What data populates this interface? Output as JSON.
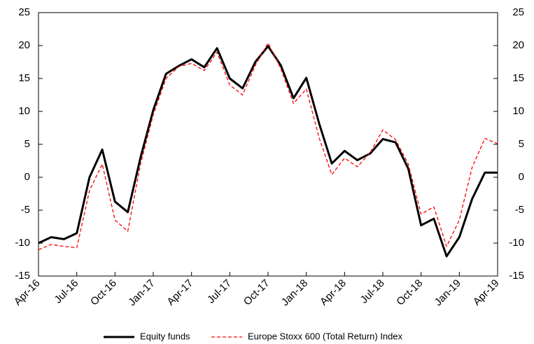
{
  "chart_data": {
    "type": "line",
    "categories": [
      "Apr-16",
      null,
      null,
      "Jul-16",
      null,
      null,
      "Oct-16",
      null,
      null,
      "Jan-17",
      null,
      null,
      "Apr-17",
      null,
      null,
      "Jul-17",
      null,
      null,
      "Oct-17",
      null,
      null,
      "Jan-18",
      null,
      null,
      "Apr-18",
      null,
      null,
      "Jul-18",
      null,
      null,
      "Oct-18",
      null,
      null,
      "Jan-19",
      null,
      null,
      "Apr-19"
    ],
    "series": [
      {
        "name": "Equity funds",
        "color": "#000000",
        "values": [
          -10,
          -9.1,
          -9.4,
          -8.5,
          0,
          4.2,
          -3.7,
          -5.3,
          3,
          10.2,
          15.7,
          16.9,
          17.9,
          16.7,
          19.6,
          15,
          13.5,
          17.5,
          19.9,
          17,
          12,
          15.1,
          8.2,
          2.1,
          4,
          2.6,
          3.6,
          5.8,
          5.3,
          1.3,
          -7.3,
          -6.3,
          -12,
          -9.1,
          -3.3,
          0.7,
          0.7
        ]
      },
      {
        "name": "Europe Stoxx 600 (Total Return) Index",
        "color": "#ff0000",
        "values": [
          -11,
          -10.2,
          -10.5,
          -10.7,
          -2,
          2,
          -6.5,
          -8.2,
          2,
          9.5,
          15,
          16.8,
          17.3,
          16.2,
          19,
          14,
          12.5,
          17,
          20.4,
          16.5,
          11.2,
          13.4,
          6,
          0.4,
          2.9,
          1.6,
          3.7,
          7.2,
          5.7,
          2,
          -5.6,
          -4.5,
          -10.5,
          -6.5,
          1.5,
          5.9,
          5.1
        ]
      }
    ],
    "ylim": [
      -15,
      25
    ],
    "yticks": [
      -15,
      -10,
      -5,
      0,
      5,
      10,
      15,
      20,
      25
    ],
    "y2lim": [
      -15,
      25
    ],
    "y2ticks": [
      -15,
      -10,
      -5,
      0,
      5,
      10,
      15,
      20,
      25
    ],
    "grid": false,
    "legend": "bottom"
  }
}
